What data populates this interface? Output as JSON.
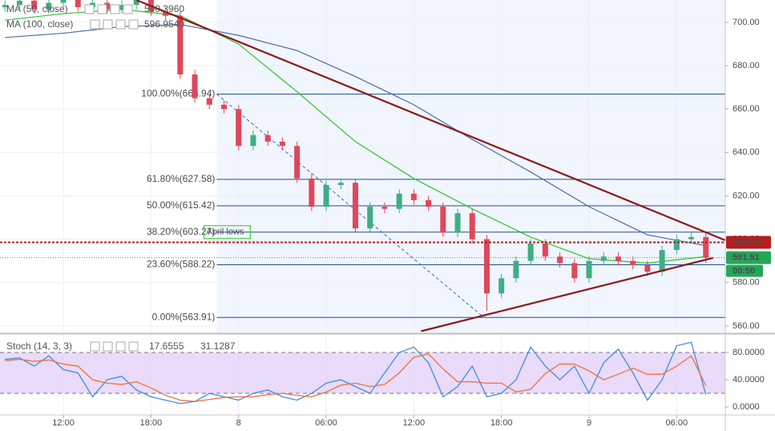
{
  "chart_data": [
    {
      "type": "candlestick",
      "x": [
        8,
        9,
        10,
        11,
        12,
        13,
        14,
        15,
        16,
        17,
        18,
        19,
        20,
        21,
        22,
        23,
        24,
        25,
        26,
        27,
        28,
        29,
        30,
        31,
        32,
        33,
        34,
        35,
        36,
        37,
        38,
        39,
        40,
        41,
        42,
        43,
        44,
        45,
        46,
        47,
        48,
        49,
        50,
        51,
        52,
        53,
        54,
        55,
        56
      ],
      "open": [
        707,
        708,
        710,
        706,
        709,
        711,
        707,
        709,
        706,
        708,
        711,
        705,
        703,
        676,
        665,
        662,
        660,
        643,
        648,
        645,
        643,
        628,
        615,
        625,
        626,
        605,
        615,
        614,
        621,
        618,
        615,
        603,
        612,
        600,
        575,
        582,
        590,
        598,
        592,
        589,
        582,
        590,
        592,
        590,
        588,
        585,
        595,
        600,
        601
      ],
      "high": [
        710,
        712,
        712,
        711,
        713,
        713,
        711,
        711,
        710,
        713,
        713,
        707,
        705,
        678,
        667,
        664,
        662,
        650,
        650,
        647,
        645,
        630,
        627,
        628,
        628,
        617,
        617,
        623,
        623,
        620,
        617,
        614,
        614,
        602,
        584,
        592,
        600,
        600,
        594,
        591,
        592,
        594,
        594,
        592,
        590,
        597,
        602,
        603,
        603
      ],
      "low": [
        705,
        706,
        704,
        704,
        707,
        705,
        705,
        704,
        704,
        706,
        703,
        701,
        674,
        663,
        660,
        658,
        641,
        641,
        643,
        641,
        626,
        613,
        613,
        623,
        603,
        603,
        612,
        612,
        616,
        613,
        601,
        601,
        598,
        567,
        573,
        580,
        588,
        590,
        587,
        580,
        580,
        588,
        588,
        586,
        583,
        583,
        593,
        598,
        589
      ],
      "close": [
        708,
        710,
        706,
        709,
        711,
        707,
        709,
        706,
        708,
        711,
        705,
        703,
        676,
        665,
        662,
        660,
        643,
        648,
        645,
        643,
        628,
        615,
        625,
        626,
        605,
        615,
        614,
        621,
        618,
        615,
        603,
        612,
        600,
        575,
        582,
        590,
        598,
        592,
        589,
        582,
        590,
        592,
        590,
        588,
        585,
        595,
        600,
        601,
        591.51
      ],
      "up_color": "#3fae84",
      "down_color": "#e0475a",
      "xlim": [
        7.66,
        57.33
      ],
      "xticks": [
        {
          "value": 12,
          "label": "12:00"
        },
        {
          "value": 18,
          "label": "18:00"
        },
        {
          "value": 24,
          "label": "8"
        },
        {
          "value": 30,
          "label": "06:00"
        },
        {
          "value": 36,
          "label": "12:00"
        },
        {
          "value": 42,
          "label": "18:00"
        },
        {
          "value": 48,
          "label": "9"
        },
        {
          "value": 54,
          "label": "06:00"
        }
      ],
      "ylim": [
        557,
        710.3
      ],
      "yticks": [
        {
          "value": 560,
          "label": "560.00"
        },
        {
          "value": 580,
          "label": "580.00"
        },
        {
          "value": 600,
          "label": "600.00"
        },
        {
          "value": 620,
          "label": "620.00"
        },
        {
          "value": 640,
          "label": "640.00"
        },
        {
          "value": 660,
          "label": "660.00"
        },
        {
          "value": 680,
          "label": "680.00"
        },
        {
          "value": 700,
          "label": "700.00"
        }
      ],
      "grid": true,
      "moving_averages": [
        {
          "name": "MA (50, close)",
          "value_label": "590.3960",
          "color": "#2fc42f",
          "x": [
            8,
            12,
            16,
            20,
            24,
            28,
            32,
            36,
            40,
            44,
            48,
            52,
            56
          ],
          "values": [
            701,
            704,
            706,
            703,
            690,
            668,
            645,
            628,
            614,
            601,
            591,
            589,
            592
          ]
        },
        {
          "name": "MA (100, close)",
          "value_label": "596.9540",
          "color": "#4a6fa8",
          "x": [
            8,
            12,
            16,
            20,
            24,
            28,
            32,
            36,
            40,
            44,
            48,
            52,
            56
          ],
          "values": [
            693,
            695,
            698,
            699,
            694,
            687,
            675,
            662,
            646,
            631,
            615,
            602,
            597
          ]
        }
      ],
      "fibonacci": {
        "color": "#1f4e9c",
        "label_color": "#3d6fc0",
        "x_start": 22.5,
        "levels": [
          {
            "label": "100.00%(666.94)",
            "value": 666.94
          },
          {
            "label": "61.80%(627.58)",
            "value": 627.58
          },
          {
            "label": "50.00%(615.42)",
            "value": 615.42
          },
          {
            "label": "38.20%(603.27)",
            "value": 603.27
          },
          {
            "label": "23.60%(588.22)",
            "value": 588.22
          },
          {
            "label": "0.00%(563.91)",
            "value": 563.91
          }
        ]
      },
      "fib_diagonal": {
        "x": [
          22.5,
          40.8
        ],
        "y": [
          666.94,
          563.91
        ],
        "color": "#3d6fc0"
      },
      "trendlines": [
        {
          "x": [
            17,
            57.33
          ],
          "y": [
            710.3,
            599.5
          ],
          "color": "#8b1a1a"
        },
        {
          "x": [
            36.5,
            56.5
          ],
          "y": [
            557.6,
            591.4
          ],
          "color": "#8b1a1a"
        }
      ],
      "price_lines": [
        {
          "value": 598.58,
          "label": "598.58",
          "color": "#b71c1c"
        },
        {
          "value": 591.51,
          "label": "591.51",
          "color": "#26a65b",
          "countdown": "00:50"
        }
      ],
      "annotation": {
        "text": "April lows",
        "color": "#2fc42f"
      }
    },
    {
      "type": "line",
      "title": "Stoch (14, 3, 3)",
      "x": [
        8,
        9,
        10,
        11,
        12,
        13,
        14,
        15,
        16,
        17,
        18,
        19,
        20,
        21,
        22,
        23,
        24,
        25,
        26,
        27,
        28,
        29,
        30,
        31,
        32,
        33,
        34,
        35,
        36,
        37,
        38,
        39,
        40,
        41,
        42,
        43,
        44,
        45,
        46,
        47,
        48,
        49,
        50,
        51,
        52,
        53,
        54,
        55,
        56
      ],
      "series": [
        {
          "color": "#3d8fe0",
          "value_label": "17.6555",
          "values": [
            70,
            72,
            60,
            75,
            55,
            50,
            15,
            40,
            45,
            25,
            15,
            10,
            5,
            8,
            20,
            15,
            10,
            20,
            25,
            15,
            10,
            20,
            35,
            40,
            30,
            20,
            50,
            80,
            88,
            65,
            15,
            30,
            60,
            15,
            20,
            40,
            88,
            60,
            40,
            60,
            20,
            65,
            85,
            50,
            10,
            40,
            90,
            95,
            17.6555
          ]
        },
        {
          "color": "#f0703a",
          "value_label": "31.1287",
          "values": [
            68,
            70,
            67,
            69,
            63,
            60,
            40,
            35,
            33,
            37,
            28,
            17,
            10,
            8,
            11,
            14,
            15,
            15,
            18,
            20,
            17,
            15,
            22,
            32,
            35,
            30,
            33,
            50,
            73,
            78,
            56,
            37,
            37,
            35,
            35,
            22,
            26,
            49,
            63,
            63,
            53,
            40,
            48,
            57,
            48,
            48,
            60,
            75,
            31.1287
          ]
        }
      ],
      "band": [
        20,
        80
      ],
      "band_color": "#e4d2f7",
      "ylim": [
        -11.8,
        105.9
      ],
      "yticks": [
        {
          "value": 0,
          "label": "0.0000"
        },
        {
          "value": 40,
          "label": "40.0000"
        },
        {
          "value": 80,
          "label": "80.0000"
        }
      ]
    }
  ]
}
